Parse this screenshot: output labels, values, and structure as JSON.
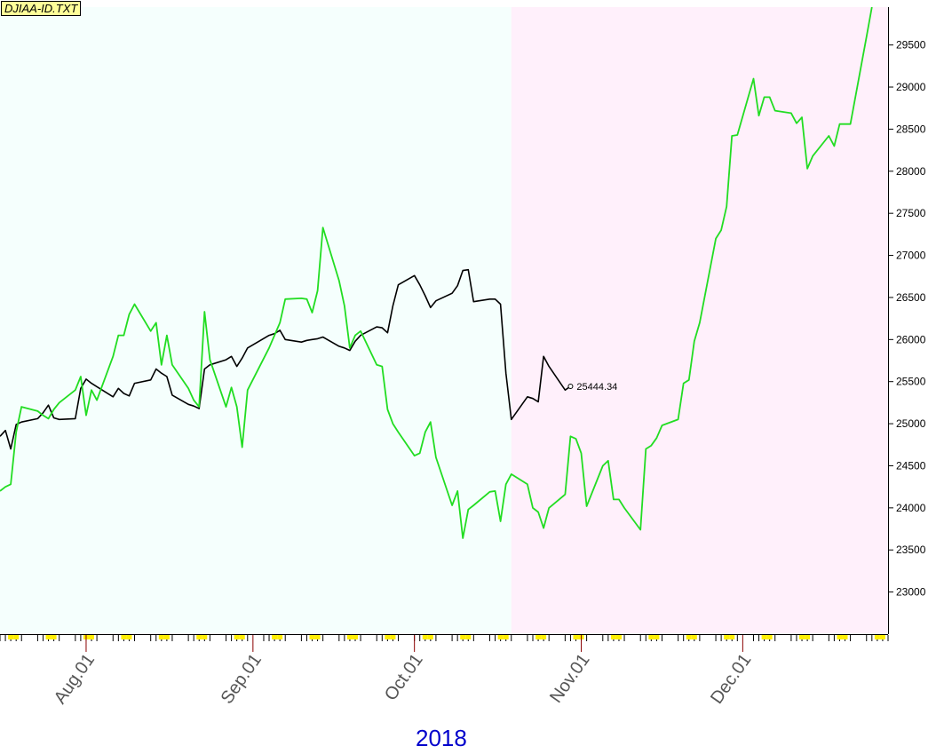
{
  "header": {
    "file_label": "DJIAA-ID.TXT"
  },
  "footer": {
    "year_label": "2018"
  },
  "chart_data": {
    "type": "line",
    "title": "",
    "xlabel": "2018",
    "ylabel": "",
    "ylim": [
      22500,
      29950
    ],
    "x_range": [
      "2018-07-16",
      "2018-12-28"
    ],
    "y_ticks": [
      23000,
      23500,
      24000,
      24500,
      25000,
      25500,
      26000,
      26500,
      27000,
      27500,
      28000,
      28500,
      29000,
      29500
    ],
    "x_tick_labels": [
      {
        "label": "Aug.01",
        "date": "2018-08-01"
      },
      {
        "label": "Sep.01",
        "date": "2018-09-01"
      },
      {
        "label": "Oct.01",
        "date": "2018-10-01"
      },
      {
        "label": "Nov.01",
        "date": "2018-11-01"
      },
      {
        "label": "Dec.01",
        "date": "2018-12-01"
      }
    ],
    "shading": [
      {
        "from": "2018-07-16",
        "to": "2018-10-19",
        "color": "#f5fffd"
      },
      {
        "from": "2018-10-19",
        "to": "2018-12-28",
        "color": "#fff0fb"
      }
    ],
    "grid": false,
    "last_value_label": "25444.34",
    "colors": {
      "price": "#000000",
      "projection": "#22dd22",
      "axis": "#000000",
      "year": "#0000cc",
      "tick_marker": "#ffee00",
      "month_tick": "#8b0000"
    },
    "series": [
      {
        "key": "price",
        "points": [
          [
            "2018-07-16",
            24850
          ],
          [
            "2018-07-17",
            24920
          ],
          [
            "2018-07-18",
            24700
          ],
          [
            "2018-07-19",
            24990
          ],
          [
            "2018-07-20",
            25020
          ],
          [
            "2018-07-23",
            25060
          ],
          [
            "2018-07-24",
            25130
          ],
          [
            "2018-07-25",
            25220
          ],
          [
            "2018-07-26",
            25070
          ],
          [
            "2018-07-27",
            25050
          ],
          [
            "2018-07-30",
            25060
          ],
          [
            "2018-07-31",
            25420
          ],
          [
            "2018-08-01",
            25530
          ],
          [
            "2018-08-02",
            25480
          ],
          [
            "2018-08-03",
            25440
          ],
          [
            "2018-08-06",
            25320
          ],
          [
            "2018-08-07",
            25420
          ],
          [
            "2018-08-08",
            25360
          ],
          [
            "2018-08-09",
            25330
          ],
          [
            "2018-08-10",
            25480
          ],
          [
            "2018-08-13",
            25520
          ],
          [
            "2018-08-14",
            25650
          ],
          [
            "2018-08-15",
            25600
          ],
          [
            "2018-08-16",
            25560
          ],
          [
            "2018-08-17",
            25340
          ],
          [
            "2018-08-20",
            25230
          ],
          [
            "2018-08-21",
            25210
          ],
          [
            "2018-08-22",
            25180
          ],
          [
            "2018-08-23",
            25650
          ],
          [
            "2018-08-24",
            25700
          ],
          [
            "2018-08-27",
            25760
          ],
          [
            "2018-08-28",
            25800
          ],
          [
            "2018-08-29",
            25680
          ],
          [
            "2018-08-30",
            25780
          ],
          [
            "2018-08-31",
            25900
          ],
          [
            "2018-09-04",
            26050
          ],
          [
            "2018-09-05",
            26070
          ],
          [
            "2018-09-06",
            26110
          ],
          [
            "2018-09-07",
            26000
          ],
          [
            "2018-09-10",
            25970
          ],
          [
            "2018-09-11",
            25990
          ],
          [
            "2018-09-12",
            26000
          ],
          [
            "2018-09-13",
            26010
          ],
          [
            "2018-09-14",
            26030
          ],
          [
            "2018-09-17",
            25920
          ],
          [
            "2018-09-18",
            25900
          ],
          [
            "2018-09-19",
            25870
          ],
          [
            "2018-09-20",
            25980
          ],
          [
            "2018-09-21",
            26050
          ],
          [
            "2018-09-24",
            26150
          ],
          [
            "2018-09-25",
            26140
          ],
          [
            "2018-09-26",
            26080
          ],
          [
            "2018-09-27",
            26400
          ],
          [
            "2018-09-28",
            26650
          ],
          [
            "2018-10-01",
            26760
          ],
          [
            "2018-10-02",
            26650
          ],
          [
            "2018-10-03",
            26520
          ],
          [
            "2018-10-04",
            26380
          ],
          [
            "2018-10-05",
            26460
          ],
          [
            "2018-10-08",
            26550
          ],
          [
            "2018-10-09",
            26640
          ],
          [
            "2018-10-10",
            26820
          ],
          [
            "2018-10-11",
            26830
          ],
          [
            "2018-10-12",
            26450
          ],
          [
            "2018-10-15",
            26480
          ],
          [
            "2018-10-16",
            26480
          ],
          [
            "2018-10-17",
            26420
          ],
          [
            "2018-10-18",
            25600
          ],
          [
            "2018-10-19",
            25050
          ],
          [
            "2018-10-22",
            25320
          ],
          [
            "2018-10-23",
            25300
          ],
          [
            "2018-10-24",
            25260
          ],
          [
            "2018-10-25",
            25800
          ],
          [
            "2018-10-26",
            25680
          ],
          [
            "2018-10-29",
            25400
          ],
          [
            "2018-10-30",
            25444.34
          ]
        ]
      },
      {
        "key": "projection",
        "points": [
          [
            "2018-07-16",
            24200
          ],
          [
            "2018-07-17",
            24250
          ],
          [
            "2018-07-18",
            24280
          ],
          [
            "2018-07-19",
            24900
          ],
          [
            "2018-07-20",
            25200
          ],
          [
            "2018-07-23",
            25150
          ],
          [
            "2018-07-24",
            25100
          ],
          [
            "2018-07-25",
            25060
          ],
          [
            "2018-07-26",
            25170
          ],
          [
            "2018-07-27",
            25250
          ],
          [
            "2018-07-30",
            25400
          ],
          [
            "2018-07-31",
            25560
          ],
          [
            "2018-08-01",
            25100
          ],
          [
            "2018-08-02",
            25400
          ],
          [
            "2018-08-03",
            25280
          ],
          [
            "2018-08-06",
            25800
          ],
          [
            "2018-08-07",
            26050
          ],
          [
            "2018-08-08",
            26050
          ],
          [
            "2018-08-09",
            26300
          ],
          [
            "2018-08-10",
            26420
          ],
          [
            "2018-08-13",
            26100
          ],
          [
            "2018-08-14",
            26200
          ],
          [
            "2018-08-15",
            25700
          ],
          [
            "2018-08-16",
            26050
          ],
          [
            "2018-08-17",
            25700
          ],
          [
            "2018-08-20",
            25420
          ],
          [
            "2018-08-21",
            25280
          ],
          [
            "2018-08-22",
            25200
          ],
          [
            "2018-08-23",
            26330
          ],
          [
            "2018-08-24",
            25760
          ],
          [
            "2018-08-27",
            25200
          ],
          [
            "2018-08-28",
            25430
          ],
          [
            "2018-08-29",
            25200
          ],
          [
            "2018-08-30",
            24720
          ],
          [
            "2018-08-31",
            25400
          ],
          [
            "2018-09-04",
            25900
          ],
          [
            "2018-09-05",
            26050
          ],
          [
            "2018-09-06",
            26200
          ],
          [
            "2018-09-07",
            26480
          ],
          [
            "2018-09-10",
            26490
          ],
          [
            "2018-09-11",
            26480
          ],
          [
            "2018-09-12",
            26320
          ],
          [
            "2018-09-13",
            26580
          ],
          [
            "2018-09-14",
            27330
          ],
          [
            "2018-09-17",
            26700
          ],
          [
            "2018-09-18",
            26400
          ],
          [
            "2018-09-19",
            25900
          ],
          [
            "2018-09-20",
            26050
          ],
          [
            "2018-09-21",
            26100
          ],
          [
            "2018-09-24",
            25700
          ],
          [
            "2018-09-25",
            25680
          ],
          [
            "2018-09-26",
            25170
          ],
          [
            "2018-09-27",
            25000
          ],
          [
            "2018-09-28",
            24900
          ],
          [
            "2018-10-01",
            24620
          ],
          [
            "2018-10-02",
            24650
          ],
          [
            "2018-10-03",
            24900
          ],
          [
            "2018-10-04",
            25020
          ],
          [
            "2018-10-05",
            24600
          ],
          [
            "2018-10-08",
            24030
          ],
          [
            "2018-10-09",
            24200
          ],
          [
            "2018-10-10",
            23640
          ],
          [
            "2018-10-11",
            23980
          ],
          [
            "2018-10-12",
            24030
          ],
          [
            "2018-10-15",
            24190
          ],
          [
            "2018-10-16",
            24200
          ],
          [
            "2018-10-17",
            23840
          ],
          [
            "2018-10-18",
            24280
          ],
          [
            "2018-10-19",
            24400
          ],
          [
            "2018-10-22",
            24280
          ],
          [
            "2018-10-23",
            24000
          ],
          [
            "2018-10-24",
            23950
          ],
          [
            "2018-10-25",
            23760
          ],
          [
            "2018-10-26",
            24000
          ],
          [
            "2018-10-29",
            24160
          ],
          [
            "2018-10-30",
            24850
          ],
          [
            "2018-10-31",
            24820
          ],
          [
            "2018-11-01",
            24650
          ],
          [
            "2018-11-02",
            24020
          ],
          [
            "2018-11-05",
            24500
          ],
          [
            "2018-11-06",
            24560
          ],
          [
            "2018-11-07",
            24100
          ],
          [
            "2018-11-08",
            24100
          ],
          [
            "2018-11-09",
            24000
          ],
          [
            "2018-11-12",
            23740
          ],
          [
            "2018-11-13",
            24700
          ],
          [
            "2018-11-14",
            24740
          ],
          [
            "2018-11-15",
            24830
          ],
          [
            "2018-11-16",
            24980
          ],
          [
            "2018-11-19",
            25050
          ],
          [
            "2018-11-20",
            25480
          ],
          [
            "2018-11-21",
            25520
          ],
          [
            "2018-11-22",
            25980
          ],
          [
            "2018-11-23",
            26200
          ],
          [
            "2018-11-26",
            27200
          ],
          [
            "2018-11-27",
            27300
          ],
          [
            "2018-11-28",
            27580
          ],
          [
            "2018-11-29",
            28420
          ],
          [
            "2018-11-30",
            28430
          ],
          [
            "2018-12-03",
            29100
          ],
          [
            "2018-12-04",
            28660
          ],
          [
            "2018-12-05",
            28880
          ],
          [
            "2018-12-06",
            28880
          ],
          [
            "2018-12-07",
            28720
          ],
          [
            "2018-12-10",
            28690
          ],
          [
            "2018-12-11",
            28570
          ],
          [
            "2018-12-12",
            28640
          ],
          [
            "2018-12-13",
            28030
          ],
          [
            "2018-12-14",
            28180
          ],
          [
            "2018-12-17",
            28420
          ],
          [
            "2018-12-18",
            28300
          ],
          [
            "2018-12-19",
            28560
          ],
          [
            "2018-12-20",
            28560
          ],
          [
            "2018-12-21",
            28560
          ],
          [
            "2018-12-24",
            29600
          ],
          [
            "2018-12-25",
            29950
          ]
        ]
      }
    ]
  }
}
